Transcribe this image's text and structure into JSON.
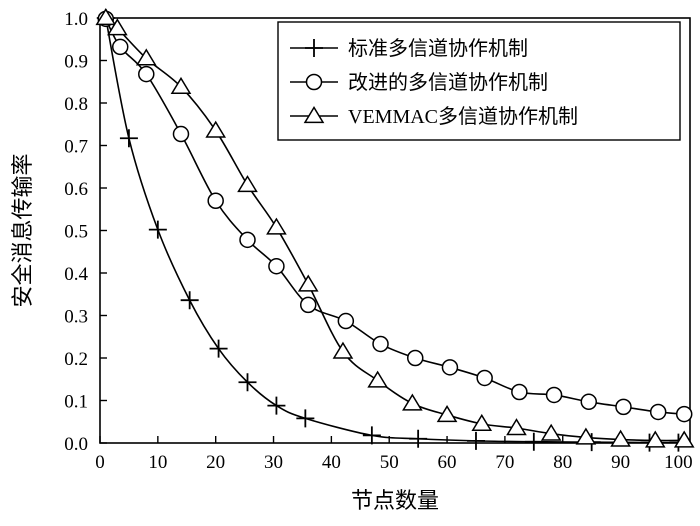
{
  "chart_data": {
    "type": "line",
    "title": "",
    "xlabel": "节点数量",
    "ylabel": "安全消息传输率",
    "xlim": [
      0,
      102
    ],
    "ylim": [
      0,
      1.0
    ],
    "x_ticks": [
      0,
      10,
      20,
      30,
      40,
      50,
      60,
      70,
      80,
      90,
      100
    ],
    "y_ticks": [
      "0.0",
      "0.1",
      "0.2",
      "0.3",
      "0.4",
      "0.5",
      "0.6",
      "0.7",
      "0.8",
      "0.9",
      "1.0"
    ],
    "grid": false,
    "legend_position": "top-right",
    "series": [
      {
        "name": "标准多信道协作机制",
        "marker": "plus",
        "points": [
          [
            1,
            1.0
          ],
          [
            5,
            0.717
          ],
          [
            10,
            0.502
          ],
          [
            15.5,
            0.336
          ],
          [
            20.5,
            0.222
          ],
          [
            25.5,
            0.143
          ],
          [
            30.5,
            0.088
          ],
          [
            35.5,
            0.058
          ],
          [
            47,
            0.018
          ],
          [
            55,
            0.01
          ],
          [
            65,
            0.005
          ],
          [
            75,
            0.003
          ],
          [
            85,
            0.002
          ],
          [
            95,
            0.001
          ],
          [
            100,
            0.001
          ]
        ]
      },
      {
        "name": "改进的多信道协作机制",
        "marker": "circle",
        "points": [
          [
            1,
            0.998
          ],
          [
            3.5,
            0.932
          ],
          [
            8,
            0.868
          ],
          [
            14,
            0.727
          ],
          [
            20,
            0.57
          ],
          [
            25.5,
            0.478
          ],
          [
            30.5,
            0.416
          ],
          [
            36,
            0.325
          ],
          [
            42.5,
            0.287
          ],
          [
            48.5,
            0.233
          ],
          [
            54.5,
            0.2
          ],
          [
            60.5,
            0.178
          ],
          [
            66.5,
            0.153
          ],
          [
            72.5,
            0.12
          ],
          [
            78.5,
            0.113
          ],
          [
            84.5,
            0.097
          ],
          [
            90.5,
            0.085
          ],
          [
            96.5,
            0.073
          ],
          [
            101,
            0.068
          ]
        ]
      },
      {
        "name": "VEMMAC多信道协作机制",
        "marker": "triangle",
        "points": [
          [
            1,
            1.0
          ],
          [
            3,
            0.976
          ],
          [
            8,
            0.905
          ],
          [
            14,
            0.838
          ],
          [
            20,
            0.735
          ],
          [
            25.5,
            0.607
          ],
          [
            30.5,
            0.507
          ],
          [
            36,
            0.373
          ],
          [
            42,
            0.215
          ],
          [
            48,
            0.147
          ],
          [
            54,
            0.093
          ],
          [
            60,
            0.066
          ],
          [
            66,
            0.045
          ],
          [
            72,
            0.035
          ],
          [
            78,
            0.022
          ],
          [
            84,
            0.013
          ],
          [
            90,
            0.008
          ],
          [
            96,
            0.006
          ],
          [
            101,
            0.006
          ]
        ]
      }
    ]
  }
}
